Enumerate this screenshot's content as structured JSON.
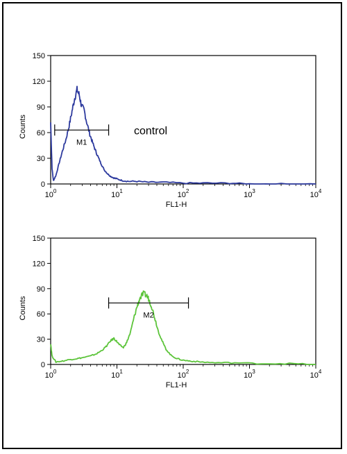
{
  "chart_data": [
    {
      "type": "line",
      "xlabel": "FL1-H",
      "ylabel": "Counts",
      "x_scale": "log",
      "xlim": [
        1,
        10000
      ],
      "ylim": [
        0,
        150
      ],
      "x_ticks": [
        {
          "base": "10",
          "exp": "0"
        },
        {
          "base": "10",
          "exp": "1"
        },
        {
          "base": "10",
          "exp": "2"
        },
        {
          "base": "10",
          "exp": "3"
        },
        {
          "base": "10",
          "exp": "4"
        }
      ],
      "y_ticks": [
        "0",
        "30",
        "60",
        "90",
        "120",
        "150"
      ],
      "y_tick_values": [
        0,
        30,
        60,
        90,
        120,
        150
      ],
      "annotation": "control",
      "series_color": "#2d3a9e",
      "gate": {
        "label": "M1",
        "x_start": 1.15,
        "x_end": 7.5,
        "y": 63
      },
      "series": [
        {
          "x": [
            1.0,
            1.05,
            1.1,
            1.2,
            1.35,
            1.5,
            1.7,
            1.9,
            2.1,
            2.3,
            2.5,
            2.7,
            2.9,
            3.2,
            3.5,
            3.9,
            4.3,
            4.8,
            5.3,
            5.9,
            6.5,
            7.2,
            8.0,
            9.0,
            10.0,
            12.0,
            15.0,
            20.0,
            30.0,
            50.0,
            100.0,
            200.0,
            500.0,
            1000.0,
            3000.0,
            10000.0
          ],
          "y": [
            72,
            18,
            4,
            10,
            25,
            38,
            52,
            68,
            85,
            100,
            110,
            104,
            92,
            86,
            72,
            58,
            48,
            38,
            30,
            22,
            16,
            12,
            9,
            7,
            6,
            4,
            3,
            3,
            2,
            2,
            1,
            1,
            1,
            0,
            0,
            0
          ]
        }
      ]
    },
    {
      "type": "line",
      "xlabel": "FL1-H",
      "ylabel": "Counts",
      "x_scale": "log",
      "xlim": [
        1,
        10000
      ],
      "ylim": [
        0,
        150
      ],
      "x_ticks": [
        {
          "base": "10",
          "exp": "0"
        },
        {
          "base": "10",
          "exp": "1"
        },
        {
          "base": "10",
          "exp": "2"
        },
        {
          "base": "10",
          "exp": "3"
        },
        {
          "base": "10",
          "exp": "4"
        }
      ],
      "y_ticks": [
        "0",
        "30",
        "60",
        "90",
        "120",
        "150"
      ],
      "y_tick_values": [
        0,
        30,
        60,
        90,
        120,
        150
      ],
      "series_color": "#5cc43a",
      "gate": {
        "label": "M2",
        "x_start": 7.5,
        "x_end": 120,
        "y": 73
      },
      "series": [
        {
          "x": [
            1.0,
            1.05,
            1.2,
            1.5,
            2.0,
            2.5,
            3.0,
            4.0,
            5.0,
            6.0,
            7.0,
            8.0,
            9.0,
            10.0,
            11.0,
            12.5,
            14.0,
            16.0,
            18.0,
            20.0,
            22.0,
            25.0,
            28.0,
            30.0,
            33.0,
            37.0,
            42.0,
            48.0,
            55.0,
            65.0,
            80.0,
            100.0,
            130.0,
            180.0,
            300.0,
            600.0,
            1500.0,
            4000.0,
            10000.0
          ],
          "y": [
            25,
            10,
            3,
            4,
            6,
            7,
            8,
            10,
            13,
            17,
            22,
            28,
            31,
            27,
            23,
            20,
            26,
            38,
            55,
            68,
            78,
            84,
            82,
            78,
            70,
            56,
            40,
            28,
            18,
            11,
            7,
            5,
            4,
            3,
            2,
            2,
            1,
            1,
            0
          ]
        }
      ]
    }
  ]
}
